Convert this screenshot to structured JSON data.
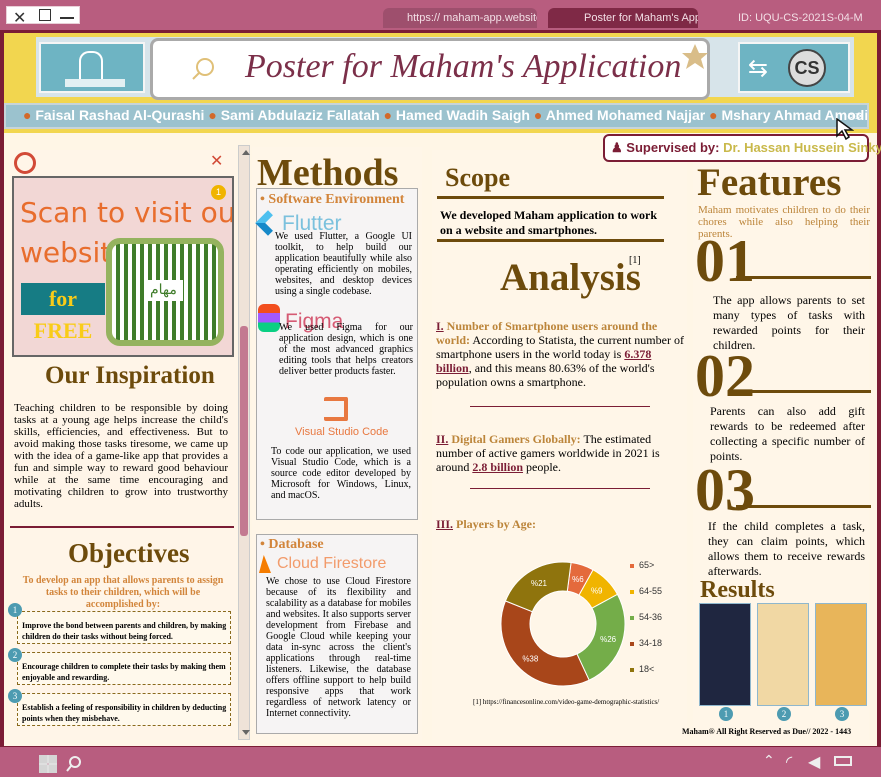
{
  "title": "Poster for Maham's Application",
  "tabs": [
    "https:// maham-app.website",
    "Poster for Maham's App...",
    "ID: UQU-CS-2021S-04-M"
  ],
  "team": [
    "Faisal Rashad Al-Qurashi",
    "Sami Abdulaziz Fallatah",
    "Hamed Wadih Saigh",
    "Ahmed Mohamed Najjar",
    "Mshary Ahmad Amodi..."
  ],
  "team_more": ">>",
  "supervisor_label": "Supervised by:",
  "supervisor_name": "Dr. Hassan Hussein Sinky",
  "scan_text_1": "Scan to visit our",
  "scan_text_2": "website",
  "scan_text_3": "for FREE",
  "scan_badge": "1",
  "qr_label": "مهام",
  "inspiration_title": "Our Inspiration",
  "inspiration_text": "Teaching children to be responsible by doing tasks at a young age helps increase the child's skills, efficiencies, and effectiveness. But to avoid making those tasks tiresome, we came up with the idea of a game-like app that provides a fun and simple way to reward good behaviour while at the same time encouraging and motivating children to grow into trustworthy adults.",
  "objectives_title": "Objectives",
  "objectives_intro": "To develop an app that allows parents to assign tasks to their children, which will be accomplished by:",
  "objectives": [
    {
      "num": "1",
      "text": "Improve the bond between parents and children, by making children do their tasks without being forced."
    },
    {
      "num": "2",
      "text": "Encourage children to complete their tasks by making them enjoyable and rewarding."
    },
    {
      "num": "3",
      "text": "Establish a feeling of responsibility in children by deducting points when they misbehave."
    }
  ],
  "methods_title": "Methods",
  "software_title": "Software Environment",
  "flutter_label": "Flutter",
  "flutter_text": "We used Flutter, a Google UI toolkit, to help build our application beautifully while also operating efficiently on mobiles, websites, and desktop devices using a single codebase.",
  "figma_label": "Figma",
  "figma_text": "We used Figma for our application design, which is one of the most advanced graphics editing tools that helps creators deliver better products faster.",
  "vscode_label": "Visual Studio Code",
  "vscode_text": "To code our application, we used Visual Studio Code, which is a source code editor developed by Microsoft for Windows, Linux, and macOS.",
  "database_title": "Database",
  "firestore_label": "Cloud Firestore",
  "firestore_text": "We chose to use Cloud Firestore because of its flexibility and scalability as a database for mobiles and websites. It also supports server development from Firebase and Google Cloud while keeping your data in-sync across the client's applications through real-time listeners. Likewise, the database offers offline support to help build responsive apps that work regardless of network latency or Internet connectivity.",
  "scope_title": "Scope",
  "scope_text": "We developed Maham application to work on a website and smartphones.",
  "analysis_title": "Analysis",
  "analysis_ref": "[1]",
  "analysis_1_num": "I.",
  "analysis_1_head": "Number of Smartphone users around the world:",
  "analysis_1_text_a": "According to Statista, the current number of smartphone users in the world today is",
  "analysis_1_value": "6.378 billion",
  "analysis_1_text_b": ", and this means 80.63% of the world's population owns a smartphone.",
  "analysis_2_num": "II.",
  "analysis_2_head": "Digital Gamers Globally:",
  "analysis_2_text_a": "The estimated number of active gamers worldwide in 2021 is around",
  "analysis_2_value": "2.8 billion",
  "analysis_2_text_b": "people.",
  "analysis_3_num": "III.",
  "analysis_3_head": "Players by Age:",
  "reference": "[1] https://financesonline.com/video-game-demographic-statistics/",
  "chart_data": {
    "type": "pie",
    "series": [
      {
        "name": "65>",
        "value": 6,
        "label": "%6",
        "color": "#e46a3c"
      },
      {
        "name": "64-55",
        "value": 9,
        "label": "%9",
        "color": "#f0b400"
      },
      {
        "name": "54-36",
        "value": 26,
        "label": "%26",
        "color": "#74ad49"
      },
      {
        "name": "34-18",
        "value": 38,
        "label": "%38",
        "color": "#a8461a"
      },
      {
        "name": "18<",
        "value": 21,
        "label": "%21",
        "color": "#8f740d"
      }
    ]
  },
  "features_title": "Features",
  "features_intro": "Maham motivates children to do their chores while also helping their parents.",
  "features": [
    {
      "num": "01",
      "text": "The app allows parents to set many types of tasks with rewarded points for their children."
    },
    {
      "num": "02",
      "text": "Parents can also add gift rewards to be redeemed after collecting a specific number of points."
    },
    {
      "num": "03",
      "text": "If the child completes a task, they can claim points, which allows them to receive rewards afterwards."
    }
  ],
  "results_title": "Results",
  "result_nums": [
    "1",
    "2",
    "3"
  ],
  "copyright": "Maham® All Right Reserved as Due// 2022 - 1443"
}
